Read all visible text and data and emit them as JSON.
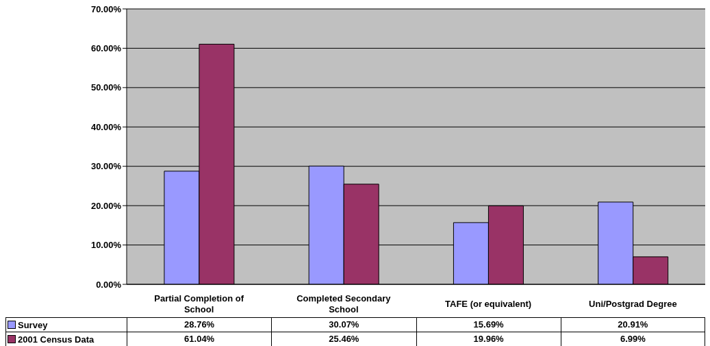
{
  "chart_data": {
    "type": "bar",
    "categories": [
      "Partial Completion of School",
      "Completed Secondary School",
      "TAFE (or equivalent)",
      "Uni/Postgrad Degree"
    ],
    "series": [
      {
        "name": "Survey",
        "color": "#9999ff",
        "values": [
          28.76,
          30.07,
          15.69,
          20.91
        ],
        "value_labels": [
          "28.76%",
          "30.07%",
          "15.69%",
          "20.91%"
        ]
      },
      {
        "name": "2001 Census Data",
        "color": "#993366",
        "values": [
          61.04,
          25.46,
          19.96,
          6.99
        ],
        "value_labels": [
          "61.04%",
          "25.46%",
          "19.96%",
          "6.99%"
        ]
      }
    ],
    "ylim": [
      0,
      70
    ],
    "yticks": [
      {
        "value": 0,
        "label": "0.00%"
      },
      {
        "value": 10,
        "label": "10.00%"
      },
      {
        "value": 20,
        "label": "20.00%"
      },
      {
        "value": 30,
        "label": "30.00%"
      },
      {
        "value": 40,
        "label": "40.00%"
      },
      {
        "value": 50,
        "label": "50.00%"
      },
      {
        "value": 60,
        "label": "60.00%"
      },
      {
        "value": 70,
        "label": "70.00%"
      }
    ],
    "grid": "y",
    "legend": "bottom left"
  }
}
